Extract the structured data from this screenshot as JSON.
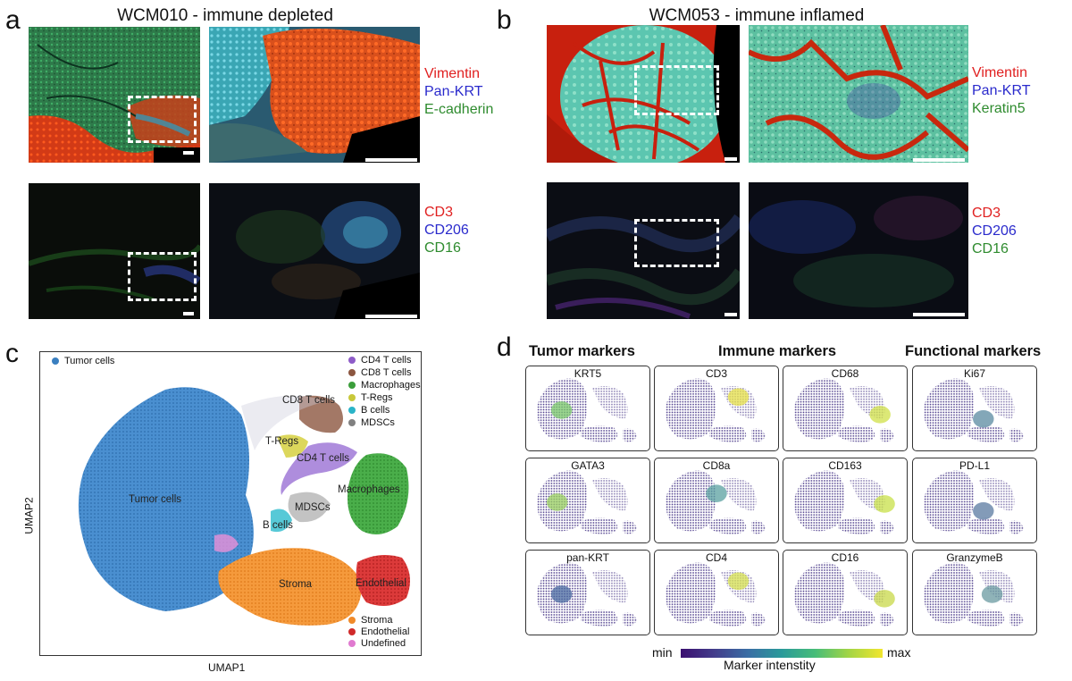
{
  "panel_a": {
    "label": "a",
    "title": "WCM010 - immune depleted",
    "row1_channels": [
      {
        "text": "Vimentin",
        "color": "#e02020"
      },
      {
        "text": "Pan-KRT",
        "color": "#2a2acc"
      },
      {
        "text": "E-cadherin",
        "color": "#2e8b2e"
      }
    ],
    "row2_channels": [
      {
        "text": "CD3",
        "color": "#e02020"
      },
      {
        "text": "CD206",
        "color": "#2a2acc"
      },
      {
        "text": "CD16",
        "color": "#2e8b2e"
      }
    ]
  },
  "panel_b": {
    "label": "b",
    "title": "WCM053 - immune inflamed",
    "row1_channels": [
      {
        "text": "Vimentin",
        "color": "#e02020"
      },
      {
        "text": "Pan-KRT",
        "color": "#2a2acc"
      },
      {
        "text": "Keratin5",
        "color": "#2e8b2e"
      }
    ],
    "row2_channels": [
      {
        "text": "CD3",
        "color": "#e02020"
      },
      {
        "text": "CD206",
        "color": "#2a2acc"
      },
      {
        "text": "CD16",
        "color": "#2e8b2e"
      }
    ]
  },
  "panel_c": {
    "label": "c",
    "xlabel": "UMAP1",
    "ylabel": "UMAP2",
    "legend_left": [
      {
        "name": "Tumor cells",
        "color": "#3a7fc0"
      }
    ],
    "legend_top_right": [
      {
        "name": "CD4 T cells",
        "color": "#8e5cc8"
      },
      {
        "name": "CD8 T cells",
        "color": "#8c5640"
      },
      {
        "name": "Macrophages",
        "color": "#3b9e3b"
      },
      {
        "name": "T-Regs",
        "color": "#c8c83a"
      },
      {
        "name": "B cells",
        "color": "#2ab4c8"
      },
      {
        "name": "MDSCs",
        "color": "#808080"
      }
    ],
    "legend_bottom_right": [
      {
        "name": "Stroma",
        "color": "#f08a2a"
      },
      {
        "name": "Endothelial",
        "color": "#d02a2a"
      },
      {
        "name": "Undefined",
        "color": "#e07ad0"
      }
    ],
    "cluster_labels": {
      "tumor": "Tumor cells",
      "cd8": "CD8 T cells",
      "tregs": "T-Regs",
      "cd4": "CD4 T cells",
      "macro": "Macrophages",
      "mdsc": "MDSCs",
      "bcells": "B cells",
      "stroma": "Stroma",
      "endo": "Endothelial"
    }
  },
  "panel_d": {
    "label": "d",
    "group_titles": [
      "Tumor markers",
      "Immune markers",
      "Functional markers"
    ],
    "markers": [
      [
        "KRT5",
        "CD3",
        "CD68",
        "Ki67"
      ],
      [
        "GATA3",
        "CD8a",
        "CD163",
        "PD-L1"
      ],
      [
        "pan-KRT",
        "CD4",
        "CD16",
        "GranzymeB"
      ]
    ],
    "colorbar": {
      "min_label": "min",
      "max_label": "max",
      "title": "Marker intenstity"
    }
  },
  "colors": {
    "viridis": [
      "#3b0f70",
      "#433d8b",
      "#3a6ea5",
      "#2a9a9a",
      "#47bd78",
      "#a3d545",
      "#f1e62f"
    ]
  }
}
